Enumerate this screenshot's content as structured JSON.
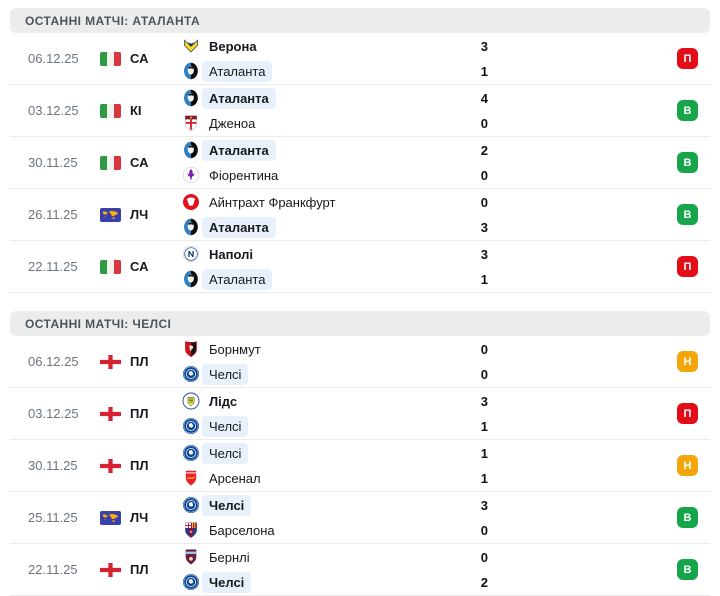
{
  "colors": {
    "win": "#16a54a",
    "loss": "#e20d19",
    "draw": "#f2a60a",
    "highlight": "#e8f1fb"
  },
  "widget": {
    "sections": [
      {
        "title": "ОСТАННІ МАТЧІ: АТАЛАНТА",
        "matches": [
          {
            "date": "06.12.25",
            "competition": {
              "code": "СА",
              "icon": "italy-flag"
            },
            "teams": [
              {
                "name": "Верона",
                "logo": "verona-logo",
                "score": "3",
                "winner": true,
                "tracked": false
              },
              {
                "name": "Аталанта",
                "logo": "atalanta-logo",
                "score": "1",
                "winner": false,
                "tracked": true
              }
            ],
            "result": {
              "label": "П",
              "type": "loss"
            }
          },
          {
            "date": "03.12.25",
            "competition": {
              "code": "КІ",
              "icon": "italy-flag"
            },
            "teams": [
              {
                "name": "Аталанта",
                "logo": "atalanta-logo",
                "score": "4",
                "winner": true,
                "tracked": true
              },
              {
                "name": "Дженоа",
                "logo": "genoa-logo",
                "score": "0",
                "winner": false,
                "tracked": false
              }
            ],
            "result": {
              "label": "В",
              "type": "win"
            }
          },
          {
            "date": "30.11.25",
            "competition": {
              "code": "СА",
              "icon": "italy-flag"
            },
            "teams": [
              {
                "name": "Аталанта",
                "logo": "atalanta-logo",
                "score": "2",
                "winner": true,
                "tracked": true
              },
              {
                "name": "Фіорентина",
                "logo": "fiorentina-logo",
                "score": "0",
                "winner": false,
                "tracked": false
              }
            ],
            "result": {
              "label": "В",
              "type": "win"
            }
          },
          {
            "date": "26.11.25",
            "competition": {
              "code": "ЛЧ",
              "icon": "ucl-flag"
            },
            "teams": [
              {
                "name": "Айнтрахт Франкфурт",
                "logo": "eintracht-logo",
                "score": "0",
                "winner": false,
                "tracked": false
              },
              {
                "name": "Аталанта",
                "logo": "atalanta-logo",
                "score": "3",
                "winner": true,
                "tracked": true
              }
            ],
            "result": {
              "label": "В",
              "type": "win"
            }
          },
          {
            "date": "22.11.25",
            "competition": {
              "code": "СА",
              "icon": "italy-flag"
            },
            "teams": [
              {
                "name": "Наполі",
                "logo": "napoli-logo",
                "score": "3",
                "winner": true,
                "tracked": false
              },
              {
                "name": "Аталанта",
                "logo": "atalanta-logo",
                "score": "1",
                "winner": false,
                "tracked": true
              }
            ],
            "result": {
              "label": "П",
              "type": "loss"
            }
          }
        ]
      },
      {
        "title": "ОСТАННІ МАТЧІ: ЧЕЛСІ",
        "matches": [
          {
            "date": "06.12.25",
            "competition": {
              "code": "ПЛ",
              "icon": "england-flag"
            },
            "teams": [
              {
                "name": "Борнмут",
                "logo": "bournemouth-logo",
                "score": "0",
                "winner": false,
                "tracked": false
              },
              {
                "name": "Челсі",
                "logo": "chelsea-logo",
                "score": "0",
                "winner": false,
                "tracked": true
              }
            ],
            "result": {
              "label": "Н",
              "type": "draw"
            }
          },
          {
            "date": "03.12.25",
            "competition": {
              "code": "ПЛ",
              "icon": "england-flag"
            },
            "teams": [
              {
                "name": "Лідс",
                "logo": "leeds-logo",
                "score": "3",
                "winner": true,
                "tracked": false
              },
              {
                "name": "Челсі",
                "logo": "chelsea-logo",
                "score": "1",
                "winner": false,
                "tracked": true
              }
            ],
            "result": {
              "label": "П",
              "type": "loss"
            }
          },
          {
            "date": "30.11.25",
            "competition": {
              "code": "ПЛ",
              "icon": "england-flag"
            },
            "teams": [
              {
                "name": "Челсі",
                "logo": "chelsea-logo",
                "score": "1",
                "winner": false,
                "tracked": true
              },
              {
                "name": "Арсенал",
                "logo": "arsenal-logo",
                "score": "1",
                "winner": false,
                "tracked": false
              }
            ],
            "result": {
              "label": "Н",
              "type": "draw"
            }
          },
          {
            "date": "25.11.25",
            "competition": {
              "code": "ЛЧ",
              "icon": "ucl-flag"
            },
            "teams": [
              {
                "name": "Челсі",
                "logo": "chelsea-logo",
                "score": "3",
                "winner": true,
                "tracked": true
              },
              {
                "name": "Барселона",
                "logo": "barcelona-logo",
                "score": "0",
                "winner": false,
                "tracked": false
              }
            ],
            "result": {
              "label": "В",
              "type": "win"
            }
          },
          {
            "date": "22.11.25",
            "competition": {
              "code": "ПЛ",
              "icon": "england-flag"
            },
            "teams": [
              {
                "name": "Бернлі",
                "logo": "burnley-logo",
                "score": "0",
                "winner": false,
                "tracked": false
              },
              {
                "name": "Челсі",
                "logo": "chelsea-logo",
                "score": "2",
                "winner": true,
                "tracked": true
              }
            ],
            "result": {
              "label": "В",
              "type": "win"
            }
          }
        ]
      }
    ]
  }
}
